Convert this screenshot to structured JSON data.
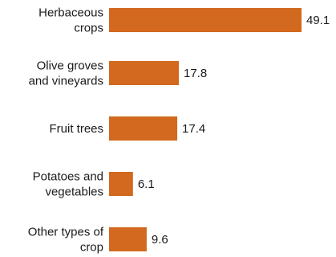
{
  "chart_data": {
    "type": "bar",
    "orientation": "horizontal",
    "categories": [
      [
        "Herbaceous",
        "crops"
      ],
      [
        "Olive groves",
        "and vineyards"
      ],
      [
        "Fruit trees"
      ],
      [
        "Potatoes and",
        "vegetables"
      ],
      [
        "Other types of",
        "crop"
      ]
    ],
    "values": [
      49.1,
      17.8,
      17.4,
      6.1,
      9.6
    ],
    "value_labels": [
      "49.1",
      "17.8",
      "17.4",
      "6.1",
      "9.6"
    ],
    "xlim": [
      0,
      49.1
    ],
    "grid": false,
    "legend": "none",
    "colors": {
      "bar": "#D2691E",
      "text": "#1a1a1a",
      "background": "#ffffff"
    }
  }
}
